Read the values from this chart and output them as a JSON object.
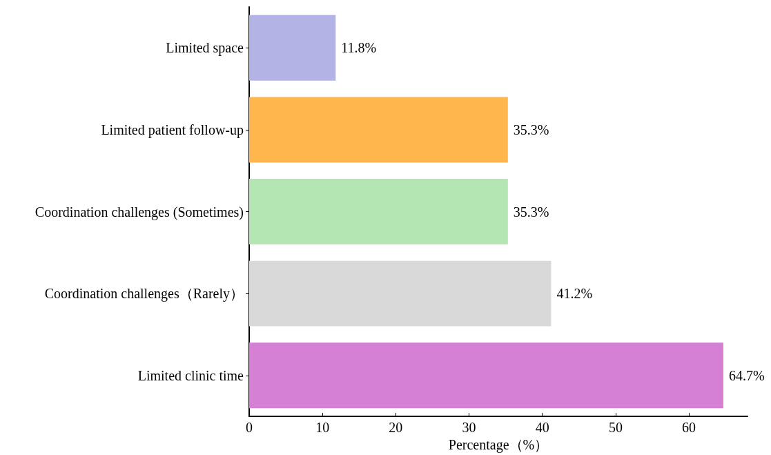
{
  "chart_data": {
    "type": "bar",
    "orientation": "horizontal",
    "xlabel": "Percentage（%）",
    "categories": [
      "Limited space",
      "Limited patient follow-up",
      "Coordination challenges (Sometimes)",
      "Coordination challenges（Rarely）",
      "Limited clinic time"
    ],
    "values": [
      11.8,
      35.3,
      35.3,
      41.2,
      64.7
    ],
    "colors": [
      "#b3b3e6",
      "#ffb74d",
      "#b3e6b3",
      "#d9d9d9",
      "#d580d5"
    ],
    "value_labels": [
      "11.8%",
      "35.3%",
      "35.3%",
      "41.2%",
      "64.7%"
    ],
    "xlim": [
      0,
      68
    ],
    "xticks": [
      0,
      10,
      20,
      30,
      40,
      50,
      60
    ]
  }
}
